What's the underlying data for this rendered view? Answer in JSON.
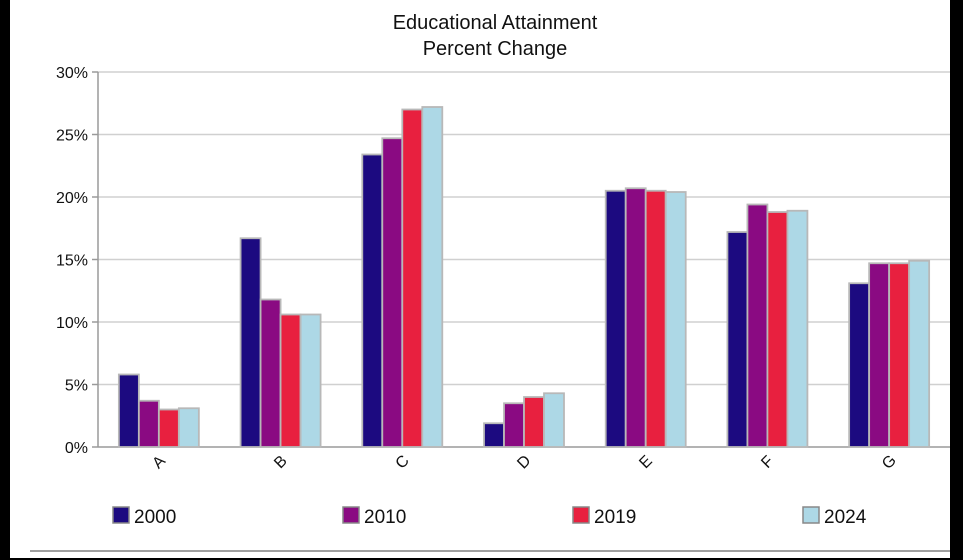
{
  "chart_data": {
    "type": "bar",
    "title": "Educational Attainment",
    "subtitle": "Percent Change",
    "categories": [
      "A",
      "B",
      "C",
      "D",
      "E",
      "F",
      "G"
    ],
    "series": [
      {
        "name": "2000",
        "color": "#1c0a80",
        "values": [
          5.8,
          16.7,
          23.4,
          1.9,
          20.5,
          17.2,
          13.1
        ]
      },
      {
        "name": "2010",
        "color": "#8a0a82",
        "values": [
          3.7,
          11.8,
          24.7,
          3.5,
          20.7,
          19.4,
          14.7
        ]
      },
      {
        "name": "2019",
        "color": "#e8203f",
        "values": [
          3.0,
          10.6,
          27.0,
          4.0,
          20.5,
          18.8,
          14.7
        ]
      },
      {
        "name": "2024",
        "color": "#add8e6",
        "values": [
          3.1,
          10.6,
          27.2,
          4.3,
          20.4,
          18.9,
          14.9
        ]
      }
    ],
    "yticks": [
      "0%",
      "5%",
      "10%",
      "15%",
      "20%",
      "25%",
      "30%"
    ],
    "ylim": [
      0,
      30
    ],
    "grid": true,
    "legend": "bottom",
    "bar_border": "#b8b8b8",
    "grid_color": "#d0d0d0"
  }
}
